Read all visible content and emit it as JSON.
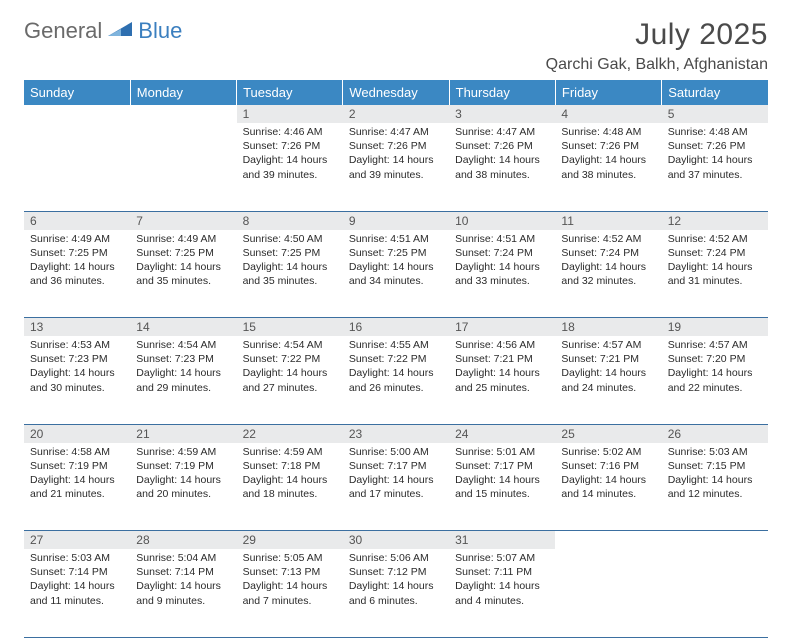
{
  "brand": {
    "part1": "General",
    "part2": "Blue"
  },
  "title": "July 2025",
  "location": "Qarchi Gak, Balkh, Afghanistan",
  "colors": {
    "header_bg": "#3b88c3",
    "header_text": "#ffffff",
    "daynum_bg": "#e9eaeb",
    "border": "#3b6fa0",
    "brand_gray": "#6a6a6a",
    "brand_blue": "#3b7fbf"
  },
  "weekdays": [
    "Sunday",
    "Monday",
    "Tuesday",
    "Wednesday",
    "Thursday",
    "Friday",
    "Saturday"
  ],
  "weeks": [
    [
      null,
      null,
      {
        "n": "1",
        "sr": "4:46 AM",
        "ss": "7:26 PM",
        "dh": "14",
        "dm": "39"
      },
      {
        "n": "2",
        "sr": "4:47 AM",
        "ss": "7:26 PM",
        "dh": "14",
        "dm": "39"
      },
      {
        "n": "3",
        "sr": "4:47 AM",
        "ss": "7:26 PM",
        "dh": "14",
        "dm": "38"
      },
      {
        "n": "4",
        "sr": "4:48 AM",
        "ss": "7:26 PM",
        "dh": "14",
        "dm": "38"
      },
      {
        "n": "5",
        "sr": "4:48 AM",
        "ss": "7:26 PM",
        "dh": "14",
        "dm": "37"
      }
    ],
    [
      {
        "n": "6",
        "sr": "4:49 AM",
        "ss": "7:25 PM",
        "dh": "14",
        "dm": "36"
      },
      {
        "n": "7",
        "sr": "4:49 AM",
        "ss": "7:25 PM",
        "dh": "14",
        "dm": "35"
      },
      {
        "n": "8",
        "sr": "4:50 AM",
        "ss": "7:25 PM",
        "dh": "14",
        "dm": "35"
      },
      {
        "n": "9",
        "sr": "4:51 AM",
        "ss": "7:25 PM",
        "dh": "14",
        "dm": "34"
      },
      {
        "n": "10",
        "sr": "4:51 AM",
        "ss": "7:24 PM",
        "dh": "14",
        "dm": "33"
      },
      {
        "n": "11",
        "sr": "4:52 AM",
        "ss": "7:24 PM",
        "dh": "14",
        "dm": "32"
      },
      {
        "n": "12",
        "sr": "4:52 AM",
        "ss": "7:24 PM",
        "dh": "14",
        "dm": "31"
      }
    ],
    [
      {
        "n": "13",
        "sr": "4:53 AM",
        "ss": "7:23 PM",
        "dh": "14",
        "dm": "30"
      },
      {
        "n": "14",
        "sr": "4:54 AM",
        "ss": "7:23 PM",
        "dh": "14",
        "dm": "29"
      },
      {
        "n": "15",
        "sr": "4:54 AM",
        "ss": "7:22 PM",
        "dh": "14",
        "dm": "27"
      },
      {
        "n": "16",
        "sr": "4:55 AM",
        "ss": "7:22 PM",
        "dh": "14",
        "dm": "26"
      },
      {
        "n": "17",
        "sr": "4:56 AM",
        "ss": "7:21 PM",
        "dh": "14",
        "dm": "25"
      },
      {
        "n": "18",
        "sr": "4:57 AM",
        "ss": "7:21 PM",
        "dh": "14",
        "dm": "24"
      },
      {
        "n": "19",
        "sr": "4:57 AM",
        "ss": "7:20 PM",
        "dh": "14",
        "dm": "22"
      }
    ],
    [
      {
        "n": "20",
        "sr": "4:58 AM",
        "ss": "7:19 PM",
        "dh": "14",
        "dm": "21"
      },
      {
        "n": "21",
        "sr": "4:59 AM",
        "ss": "7:19 PM",
        "dh": "14",
        "dm": "20"
      },
      {
        "n": "22",
        "sr": "4:59 AM",
        "ss": "7:18 PM",
        "dh": "14",
        "dm": "18"
      },
      {
        "n": "23",
        "sr": "5:00 AM",
        "ss": "7:17 PM",
        "dh": "14",
        "dm": "17"
      },
      {
        "n": "24",
        "sr": "5:01 AM",
        "ss": "7:17 PM",
        "dh": "14",
        "dm": "15"
      },
      {
        "n": "25",
        "sr": "5:02 AM",
        "ss": "7:16 PM",
        "dh": "14",
        "dm": "14"
      },
      {
        "n": "26",
        "sr": "5:03 AM",
        "ss": "7:15 PM",
        "dh": "14",
        "dm": "12"
      }
    ],
    [
      {
        "n": "27",
        "sr": "5:03 AM",
        "ss": "7:14 PM",
        "dh": "14",
        "dm": "11"
      },
      {
        "n": "28",
        "sr": "5:04 AM",
        "ss": "7:14 PM",
        "dh": "14",
        "dm": "9"
      },
      {
        "n": "29",
        "sr": "5:05 AM",
        "ss": "7:13 PM",
        "dh": "14",
        "dm": "7"
      },
      {
        "n": "30",
        "sr": "5:06 AM",
        "ss": "7:12 PM",
        "dh": "14",
        "dm": "6"
      },
      {
        "n": "31",
        "sr": "5:07 AM",
        "ss": "7:11 PM",
        "dh": "14",
        "dm": "4"
      },
      null,
      null
    ]
  ]
}
